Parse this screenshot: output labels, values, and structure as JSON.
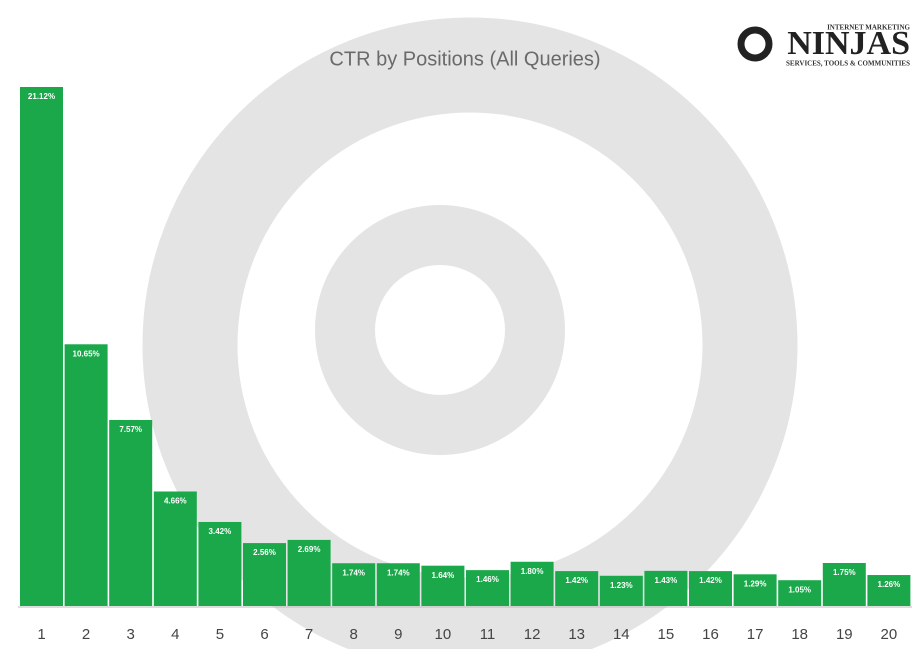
{
  "chart_data": {
    "type": "bar",
    "title": "CTR by Positions (All Queries)",
    "categories": [
      "1",
      "2",
      "3",
      "4",
      "5",
      "6",
      "7",
      "8",
      "9",
      "10",
      "11",
      "12",
      "13",
      "14",
      "15",
      "16",
      "17",
      "18",
      "19",
      "20"
    ],
    "values": [
      21.12,
      10.65,
      7.57,
      4.66,
      3.42,
      2.56,
      2.69,
      1.74,
      1.74,
      1.64,
      1.46,
      1.8,
      1.42,
      1.23,
      1.43,
      1.42,
      1.29,
      1.05,
      1.75,
      1.26
    ],
    "value_labels": [
      "21.12%",
      "10.65%",
      "7.57%",
      "4.66%",
      "3.42%",
      "2.56%",
      "2.69%",
      "1.74%",
      "1.74%",
      "1.64%",
      "1.46%",
      "1.80%",
      "1.42%",
      "1.23%",
      "1.43%",
      "1.42%",
      "1.29%",
      "1.05%",
      "1.75%",
      "1.26%"
    ],
    "color": "#1ba84b"
  },
  "logo": {
    "top": "INTERNET MARKETING",
    "name": "NINJAS",
    "bottom": "SERVICES, TOOLS & COMMUNITIES"
  }
}
